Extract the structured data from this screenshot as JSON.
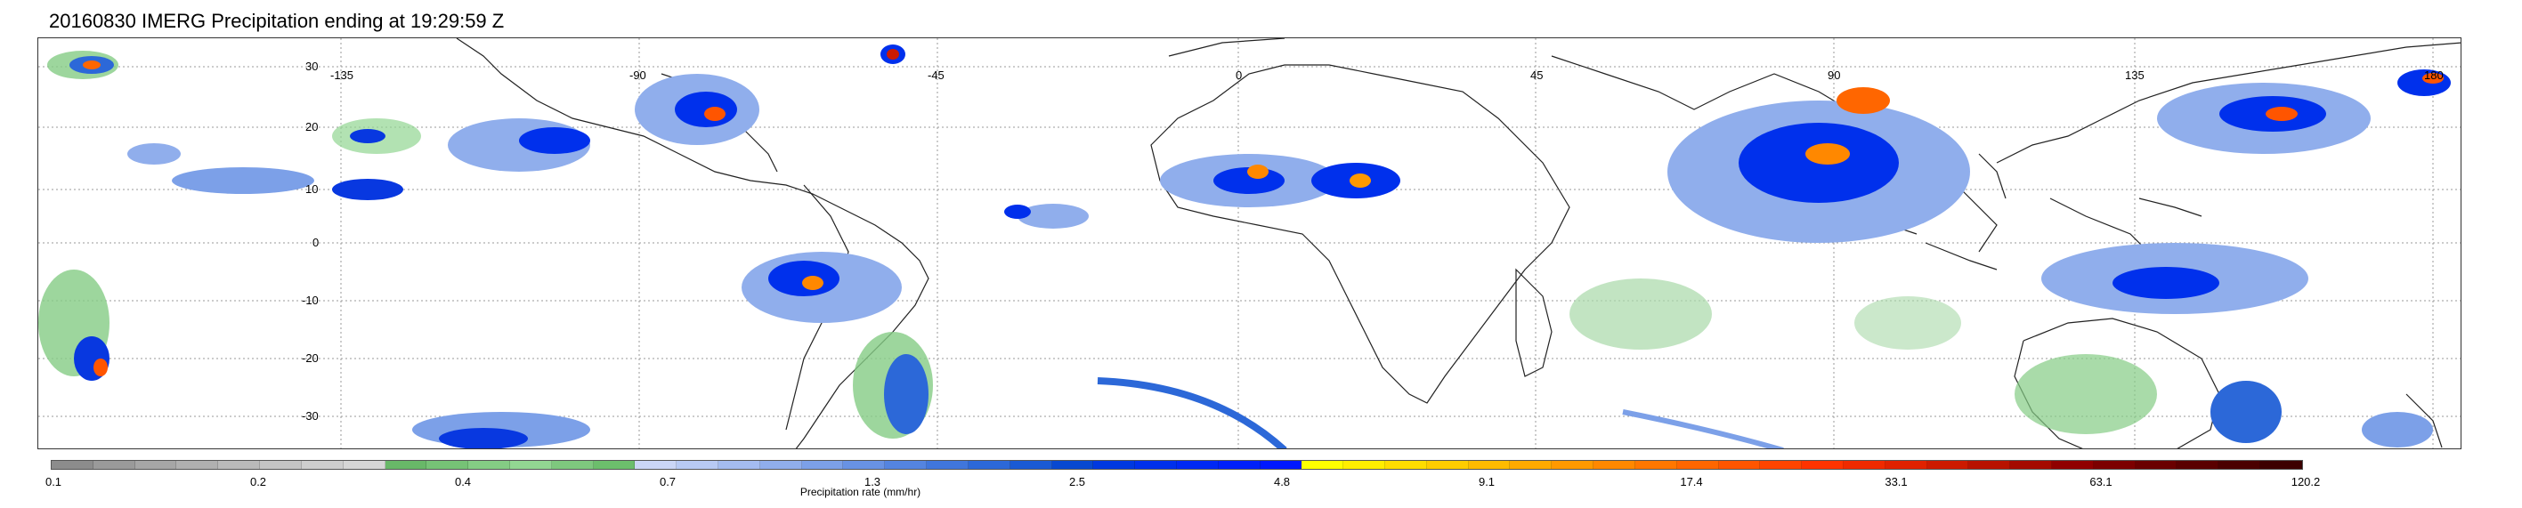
{
  "title": "20160830 IMERG Precipitation ending at 19:29:59 Z",
  "map": {
    "lat_labels": [
      "30",
      "20",
      "10",
      "0",
      "-10",
      "-20",
      "-30"
    ],
    "lon_labels": [
      "-135",
      "-90",
      "-45",
      "0",
      "45",
      "90",
      "135",
      "180"
    ]
  },
  "colorbar": {
    "label": "Precipitation rate (mm/hr)",
    "tick_labels": [
      "0.1",
      "0.2",
      "0.4",
      "0.7",
      "1.3",
      "2.5",
      "4.8",
      "9.1",
      "17.4",
      "33.1",
      "63.1",
      "120.2"
    ],
    "colors": [
      "#8c8c8c",
      "#9a9a9a",
      "#a6a6a6",
      "#b0b0b0",
      "#bababa",
      "#c4c4c4",
      "#cecece",
      "#d6d6d6",
      "#68b868",
      "#76c276",
      "#84cc84",
      "#92d692",
      "#7ec87e",
      "#6cbe6c",
      "#cbd6f6",
      "#b8caf4",
      "#a4bcf0",
      "#90aeec",
      "#7ca0e8",
      "#6892e4",
      "#5484e0",
      "#4076dc",
      "#2c68d8",
      "#1a5ad4",
      "#0848d0",
      "#0038e0",
      "#0030ec",
      "#0028f4",
      "#0020fa",
      "#0018ff",
      "#ffff00",
      "#ffee00",
      "#ffdd00",
      "#ffcc00",
      "#ffbb00",
      "#ffaa00",
      "#ff9900",
      "#ff8800",
      "#ff7700",
      "#ff6600",
      "#ff5500",
      "#ff4400",
      "#ff3300",
      "#f02a00",
      "#e02200",
      "#cc1a00",
      "#b81200",
      "#a40a00",
      "#900000",
      "#7c0000",
      "#6a0000",
      "#5a0000",
      "#4a0000",
      "#3c0000"
    ]
  }
}
